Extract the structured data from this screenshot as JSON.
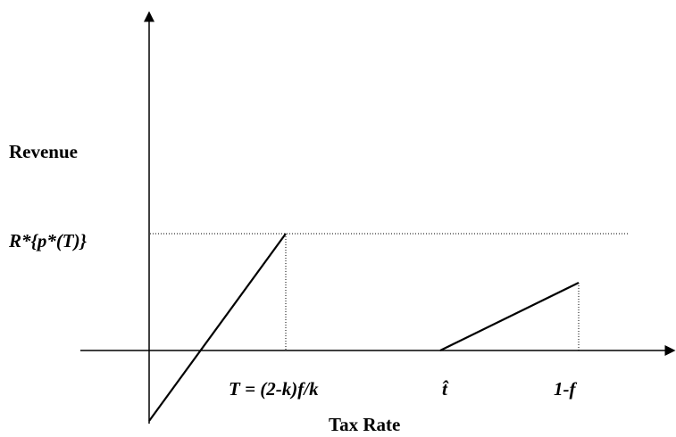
{
  "diagram": {
    "y_axis_label": "Revenue",
    "x_axis_label": "Tax Rate",
    "level_label": "R*{p*(T)}",
    "x_labels": [
      "T = (2-k)f/k",
      "t̂",
      "1-f"
    ]
  }
}
